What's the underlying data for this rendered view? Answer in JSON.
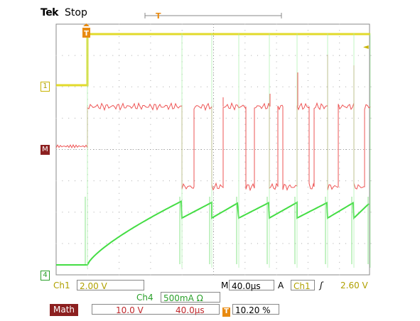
{
  "header": {
    "brand": "Tek",
    "run_state": "Stop"
  },
  "markers": {
    "trigger_position": "T",
    "trigger_level": "◄",
    "ch1": "1",
    "math": "M",
    "ch4": "4"
  },
  "readouts": {
    "ch1_label": "Ch1",
    "ch1_scale": "2.00 V",
    "ch4_label": "Ch4",
    "ch4_scale": "500mA Ω",
    "timebase_label": "M",
    "timebase": "40.0µs",
    "trigger_mode": "A",
    "trigger_source": "Ch1",
    "trigger_slope": "ʃ",
    "trigger_level": "2.60 V",
    "math_label": "Math",
    "math_scale": "10.0 V",
    "math_time": "40.0µs",
    "trigger_icon": "T",
    "trigger_offset": "10.20 %"
  },
  "colors": {
    "ch1": "#e0d820",
    "ch4": "#44dd44",
    "math": "#ee5555",
    "trigger": "#e88a10",
    "grid": "#888888"
  }
}
